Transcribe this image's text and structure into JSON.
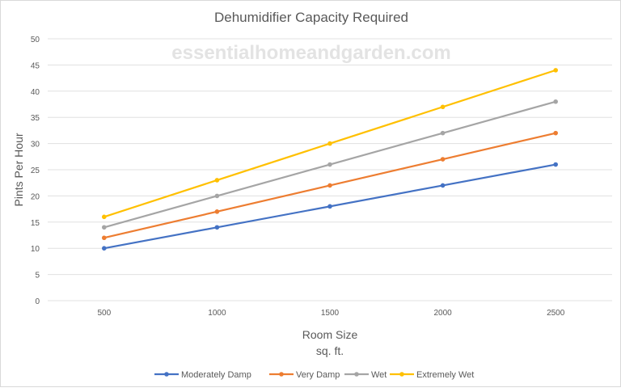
{
  "watermark": "essentialhomeandgarden.com",
  "chart_data": {
    "type": "line",
    "title": "Dehumidifier Capacity Required",
    "xlabel": "Room Size",
    "xlabel_sub": "sq. ft.",
    "ylabel": "Pints Per Hour",
    "categories": [
      "500",
      "1000",
      "1500",
      "2000",
      "2500"
    ],
    "ylim": [
      0,
      50
    ],
    "yticks": [
      "0",
      "5",
      "10",
      "15",
      "20",
      "25",
      "30",
      "35",
      "40",
      "45",
      "50"
    ],
    "grid": true,
    "legend_position": "bottom",
    "series": [
      {
        "name": "Moderately Damp",
        "color": "#4472c4",
        "values": [
          10,
          14,
          18,
          22,
          26
        ]
      },
      {
        "name": "Very Damp",
        "color": "#ed7d31",
        "values": [
          12,
          17,
          22,
          27,
          32
        ]
      },
      {
        "name": "Wet",
        "color": "#a5a5a5",
        "values": [
          14,
          20,
          26,
          32,
          38
        ]
      },
      {
        "name": "Extremely Wet",
        "color": "#ffc000",
        "values": [
          16,
          23,
          30,
          37,
          44
        ]
      }
    ]
  }
}
